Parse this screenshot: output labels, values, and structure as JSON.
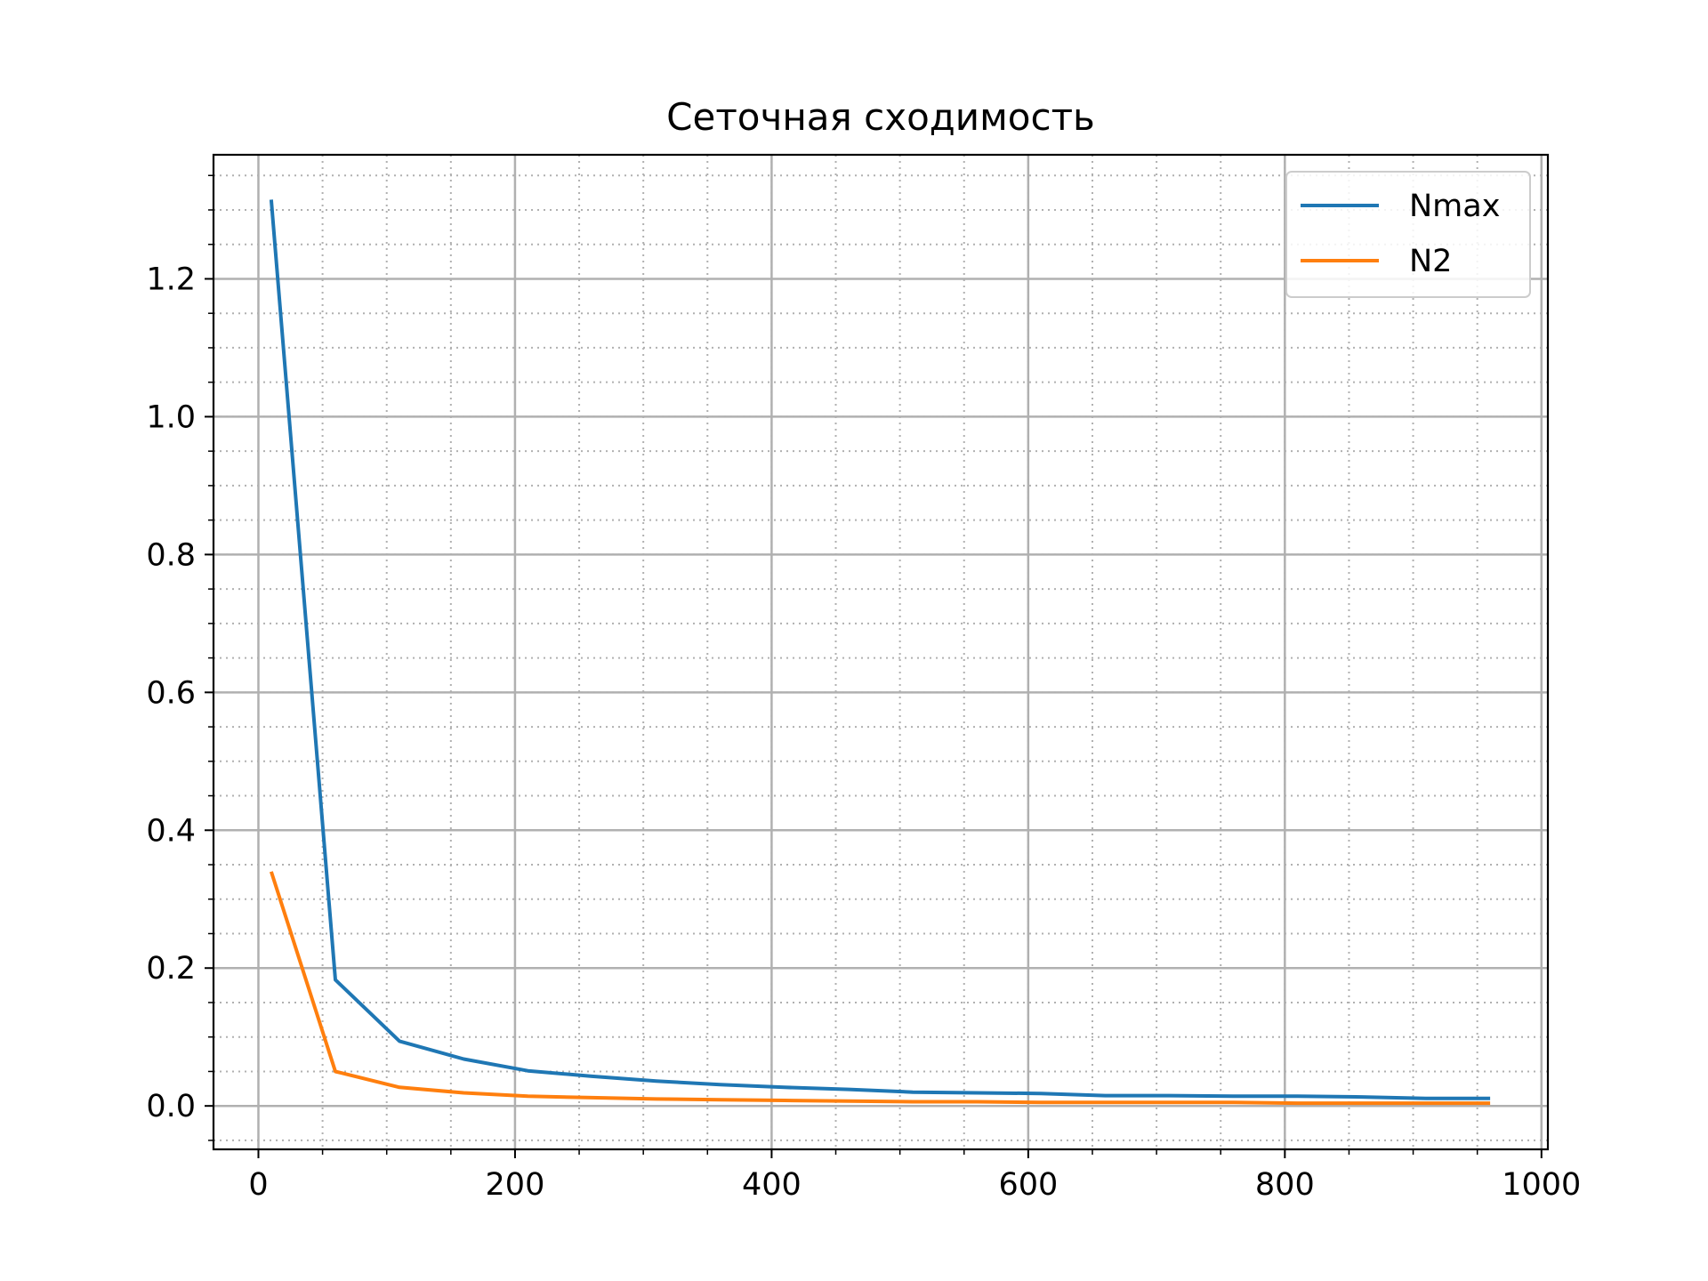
{
  "chart_data": {
    "type": "line",
    "title": "Сеточная сходимость",
    "xlabel": "",
    "ylabel": "",
    "xlim": [
      -35,
      1005
    ],
    "ylim": [
      -0.063,
      1.38
    ],
    "x_ticks": [
      0,
      200,
      400,
      600,
      800,
      1000
    ],
    "x_tick_labels": [
      "0",
      "200",
      "400",
      "600",
      "800",
      "1000"
    ],
    "x_minor_step": 50,
    "y_ticks": [
      0.0,
      0.2,
      0.4,
      0.6,
      0.8,
      1.0,
      1.2
    ],
    "y_tick_labels": [
      "0.0",
      "0.2",
      "0.4",
      "0.6",
      "0.8",
      "1.0",
      "1.2"
    ],
    "y_minor_step": 0.05,
    "grid": {
      "major": true,
      "minor": true,
      "minor_style": "dotted"
    },
    "legend": {
      "placement": "top-right"
    },
    "x": [
      10,
      60,
      110,
      160,
      210,
      260,
      310,
      360,
      410,
      460,
      510,
      560,
      610,
      660,
      710,
      760,
      810,
      860,
      910,
      960
    ],
    "series": [
      {
        "name": "Nmax",
        "color": "#1f77b4",
        "values": [
          1.315,
          0.183,
          0.094,
          0.068,
          0.051,
          0.043,
          0.036,
          0.031,
          0.027,
          0.024,
          0.02,
          0.019,
          0.018,
          0.015,
          0.015,
          0.014,
          0.014,
          0.013,
          0.011,
          0.011
        ]
      },
      {
        "name": "N2",
        "color": "#ff7f0e",
        "values": [
          0.34,
          0.05,
          0.027,
          0.019,
          0.014,
          0.012,
          0.01,
          0.009,
          0.008,
          0.007,
          0.006,
          0.006,
          0.005,
          0.005,
          0.005,
          0.005,
          0.004,
          0.004,
          0.004,
          0.004
        ]
      }
    ]
  }
}
